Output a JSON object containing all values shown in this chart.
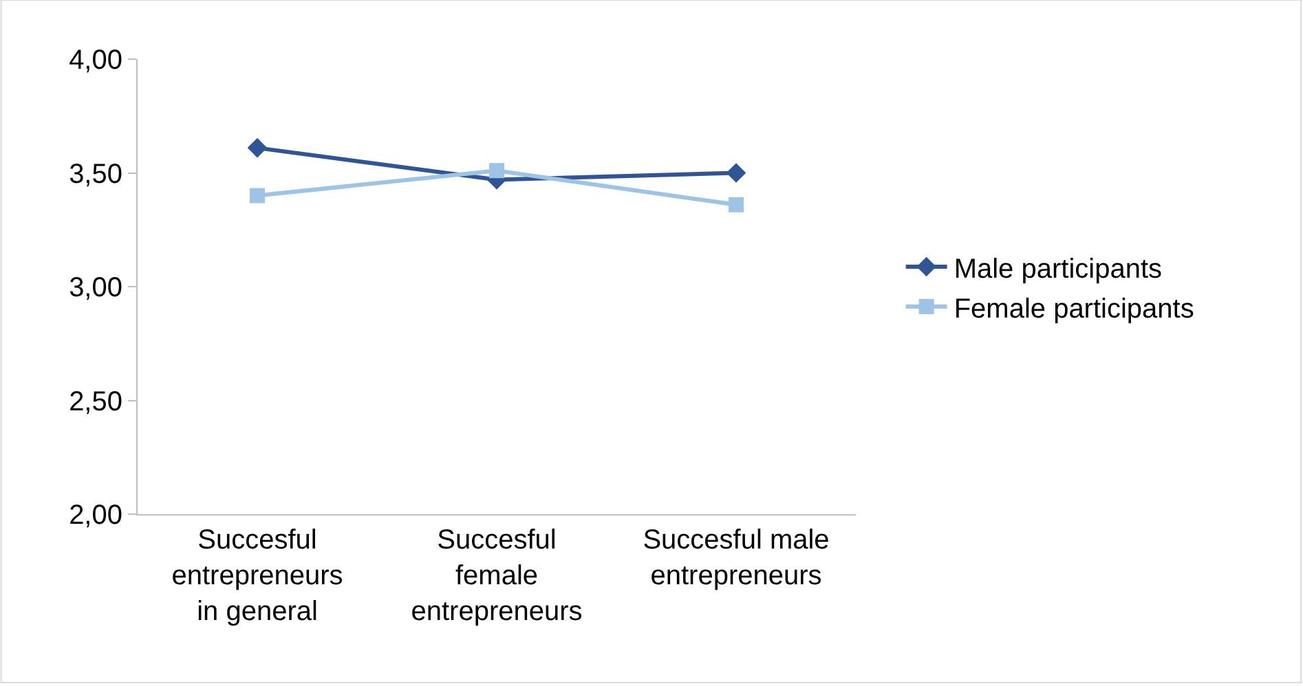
{
  "chart_data": {
    "type": "line",
    "categories": [
      "Succesful entrepreneurs in general",
      "Succesful female entrepreneurs",
      "Succesful male entrepreneurs"
    ],
    "series": [
      {
        "name": "Male participants",
        "color": "#2f5597",
        "marker": "diamond",
        "values": [
          3.61,
          3.47,
          3.5
        ]
      },
      {
        "name": "Female participants",
        "color": "#9dc3e6",
        "marker": "square",
        "values": [
          3.4,
          3.51,
          3.36
        ]
      }
    ],
    "ylim": [
      2,
      4
    ],
    "yticks": [
      {
        "value": 2,
        "label": "2,00"
      },
      {
        "value": 2.5,
        "label": "2,50"
      },
      {
        "value": 3,
        "label": "3,00"
      },
      {
        "value": 3.5,
        "label": "3,50"
      },
      {
        "value": 4,
        "label": "4,00"
      }
    ],
    "grid": false,
    "legend": "right",
    "line_style": "solid"
  }
}
